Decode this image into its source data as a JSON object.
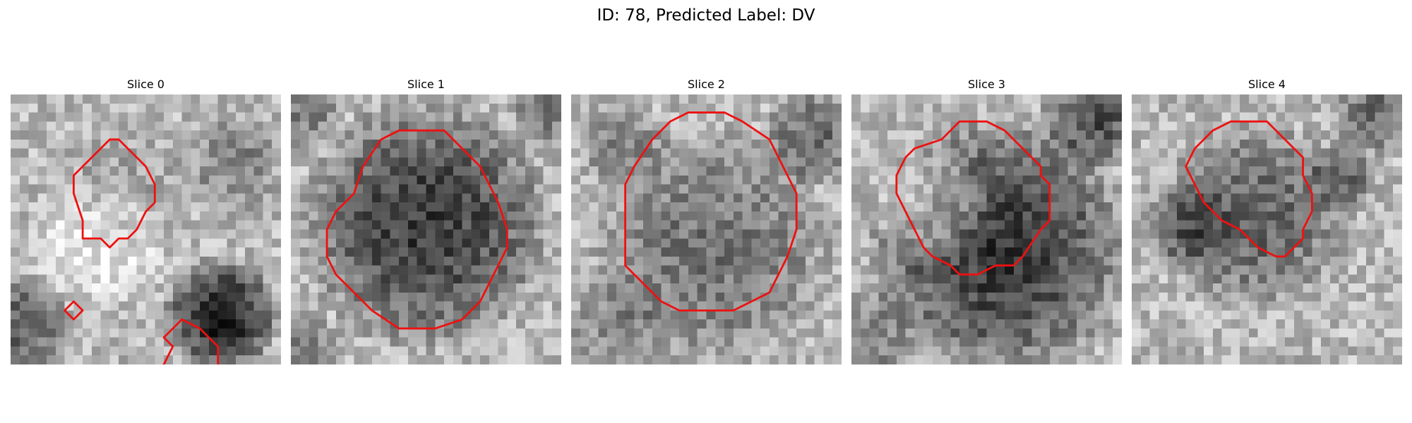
{
  "figure": {
    "title": "ID: 78, Predicted Label: DV"
  },
  "contour_color": "#ee1111",
  "panels": [
    {
      "title": "Slice 0",
      "seed": 11,
      "blobs": [
        [
          0.43,
          0.33,
          0.19,
          20
        ],
        [
          0.82,
          0.25,
          0.15,
          55
        ],
        [
          0.78,
          0.82,
          0.17,
          150
        ],
        [
          0.04,
          0.85,
          0.15,
          90
        ],
        [
          0.33,
          0.56,
          0.2,
          -45
        ]
      ],
      "contours": [
        "M 8 14 L 8 16 L 10 16 L 11 17 L 12 16 L 13 16 L 14 15 L 15 13 L 16 12 L 16 10 L 15 8 L 13 6 L 12 5 L 11 5 L 10 6 L 9 7 L 8 8 L 7 9 L 7 11 Z",
        "M 7 23 L 8 24 L 7 25 L 6 24 Z",
        "M 17 27 L 18 28 L 17 30 L 16 31 L 17 33 L 18 34 L 20 35 L 21 34 L 22 33 L 23 32 L 23 28 L 22 27 L 21 26 L 19 25 L 18 26 Z"
      ]
    },
    {
      "title": "Slice 1",
      "seed": 23,
      "blobs": [
        [
          0.5,
          0.48,
          0.36,
          125
        ],
        [
          0.05,
          0.05,
          0.12,
          60
        ],
        [
          0.95,
          0.05,
          0.12,
          60
        ],
        [
          0.05,
          0.95,
          0.12,
          50
        ]
      ],
      "contours": [
        "M 7 11 L 8 8 L 10 5 L 12 4 L 17 4 L 19 6 L 21 8 L 22 10 L 23 12 L 24 15 L 24 17 L 23 19 L 22 21 L 21 23 L 19 25 L 16 26 L 12 26 L 9 24 L 7 22 L 5 20 L 4 18 L 4 15 L 5 13 Z"
      ]
    },
    {
      "title": "Slice 2",
      "seed": 37,
      "blobs": [
        [
          0.52,
          0.58,
          0.35,
          70
        ],
        [
          0.2,
          0.2,
          0.14,
          50
        ],
        [
          0.9,
          0.15,
          0.15,
          80
        ],
        [
          0.15,
          0.85,
          0.15,
          40
        ]
      ],
      "contours": [
        "M 7 8 L 9 5 L 11 3 L 13 2 L 17 2 L 19 3 L 22 5 L 23 7 L 24 9 L 25 11 L 25 15 L 24 18 L 22 22 L 20 23 L 18 24 L 12 24 L 10 23 L 8 21 L 6 19 L 6 10 Z"
      ]
    },
    {
      "title": "Slice 3",
      "seed": 51,
      "blobs": [
        [
          0.55,
          0.57,
          0.38,
          130
        ],
        [
          0.3,
          0.42,
          0.17,
          -70
        ],
        [
          0.9,
          0.08,
          0.15,
          110
        ],
        [
          0.05,
          0.9,
          0.15,
          60
        ]
      ],
      "contours": [
        "M 5 9 L 5 11 L 6 13 L 7 15 L 8 17 L 9 18 L 11 19 L 12 20 L 14 20 L 16 19 L 18 19 L 19 18 L 21 15 L 22 14 L 22 10 L 21 9 L 21 8 L 20 7 L 19 6 L 18 5 L 17 4 L 15 3 L 12 3 L 11 4 L 10 5 L 7 6 L 6 7 Z"
      ]
    },
    {
      "title": "Slice 4",
      "seed": 67,
      "blobs": [
        [
          0.45,
          0.45,
          0.28,
          85
        ],
        [
          0.78,
          0.3,
          0.1,
          80
        ],
        [
          0.2,
          0.5,
          0.14,
          60
        ],
        [
          0.9,
          0.08,
          0.12,
          80
        ]
      ],
      "contours": [
        "M 7 6 L 8 5 L 9 4 L 11 3 L 15 3 L 16 4 L 17 5 L 18 6 L 19 7 L 19 9 L 20 11 L 20 13 L 19 15 L 19 16 L 18 17 L 17 18 L 16 18 L 14 17 L 12 15 L 10 14 L 8 12 L 7 10 L 6 8 Z"
      ]
    }
  ]
}
